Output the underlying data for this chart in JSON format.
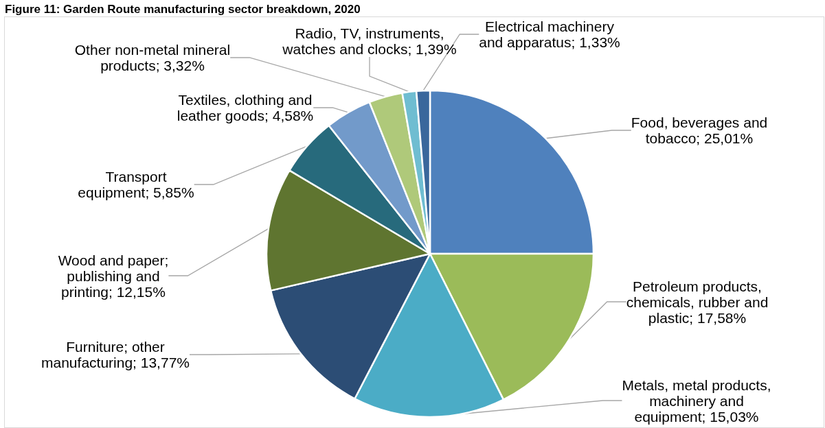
{
  "chart_data": {
    "type": "pie",
    "title": "Figure 11: Garden Route manufacturing sector breakdown, 2020",
    "categories": [
      "Food, beverages and tobacco",
      "Petroleum products, chemicals, rubber and plastic",
      "Metals, metal products, machinery and equipment",
      "Furniture; other manufacturing",
      "Wood and paper; publishing and printing",
      "Transport equipment",
      "Textiles, clothing and leather goods",
      "Other non-metal mineral products",
      "Radio, TV, instruments, watches and clocks",
      "Electrical machinery and apparatus"
    ],
    "values": [
      25.01,
      17.58,
      15.03,
      13.77,
      12.15,
      5.85,
      4.58,
      3.32,
      1.39,
      1.33
    ],
    "value_labels": [
      "25,01%",
      "17,58%",
      "15,03%",
      "13,77%",
      "12,15%",
      "5,85%",
      "4,58%",
      "3,32%",
      "1,39%",
      "1,33%"
    ],
    "colors": [
      "#4f81bd",
      "#9bbb59",
      "#4bacc6",
      "#2c4d75",
      "#5f7530",
      "#276a7c",
      "#729aca",
      "#afc97a",
      "#6fbdd1",
      "#3a679c"
    ]
  }
}
